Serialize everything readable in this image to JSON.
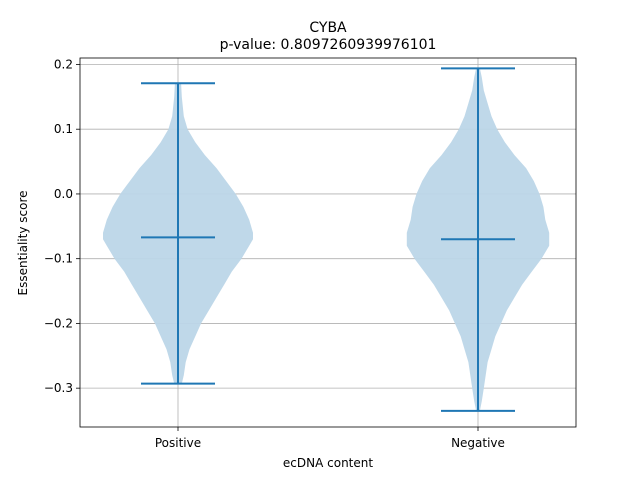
{
  "chart_data": {
    "type": "violin",
    "title": "CYBA",
    "subtitle": "p-value: 0.8097260939976101",
    "xlabel": "ecDNA content",
    "ylabel": "Essentiality score",
    "categories": [
      "Positive",
      "Negative"
    ],
    "ylim": [
      -0.36,
      0.21
    ],
    "yticks": [
      0.2,
      0.1,
      0.0,
      -0.1,
      -0.2,
      -0.3
    ],
    "ytick_labels": [
      "0.2",
      "0.1",
      "0.0",
      "−0.1",
      "−0.2",
      "−0.3"
    ],
    "grid": true,
    "colors": {
      "body": "#bcd6e8",
      "lines": "#1f77b4",
      "grid": "#b0b0b0"
    },
    "series": [
      {
        "category": "Positive",
        "max": 0.171,
        "median": -0.067,
        "min": -0.293,
        "profile": [
          [
            0.171,
            0.016
          ],
          [
            0.15,
            0.02
          ],
          [
            0.12,
            0.03
          ],
          [
            0.1,
            0.05
          ],
          [
            0.08,
            0.09
          ],
          [
            0.06,
            0.14
          ],
          [
            0.04,
            0.2
          ],
          [
            0.02,
            0.25
          ],
          [
            0.0,
            0.3
          ],
          [
            -0.02,
            0.34
          ],
          [
            -0.04,
            0.37
          ],
          [
            -0.06,
            0.39
          ],
          [
            -0.07,
            0.39
          ],
          [
            -0.08,
            0.37
          ],
          [
            -0.1,
            0.33
          ],
          [
            -0.12,
            0.28
          ],
          [
            -0.14,
            0.24
          ],
          [
            -0.16,
            0.2
          ],
          [
            -0.18,
            0.16
          ],
          [
            -0.2,
            0.12
          ],
          [
            -0.22,
            0.09
          ],
          [
            -0.24,
            0.06
          ],
          [
            -0.26,
            0.04
          ],
          [
            -0.28,
            0.03
          ],
          [
            -0.293,
            0.02
          ]
        ]
      },
      {
        "category": "Negative",
        "max": 0.194,
        "median": -0.07,
        "min": -0.335,
        "profile": [
          [
            0.194,
            0.01
          ],
          [
            0.18,
            0.02
          ],
          [
            0.16,
            0.03
          ],
          [
            0.14,
            0.05
          ],
          [
            0.12,
            0.07
          ],
          [
            0.1,
            0.1
          ],
          [
            0.08,
            0.14
          ],
          [
            0.06,
            0.19
          ],
          [
            0.04,
            0.25
          ],
          [
            0.02,
            0.29
          ],
          [
            0.0,
            0.32
          ],
          [
            -0.02,
            0.34
          ],
          [
            -0.04,
            0.35
          ],
          [
            -0.06,
            0.37
          ],
          [
            -0.08,
            0.37
          ],
          [
            -0.1,
            0.33
          ],
          [
            -0.12,
            0.28
          ],
          [
            -0.14,
            0.23
          ],
          [
            -0.16,
            0.19
          ],
          [
            -0.18,
            0.15
          ],
          [
            -0.2,
            0.12
          ],
          [
            -0.22,
            0.09
          ],
          [
            -0.24,
            0.07
          ],
          [
            -0.26,
            0.05
          ],
          [
            -0.28,
            0.04
          ],
          [
            -0.3,
            0.03
          ],
          [
            -0.32,
            0.02
          ],
          [
            -0.335,
            0.01
          ]
        ]
      }
    ]
  }
}
